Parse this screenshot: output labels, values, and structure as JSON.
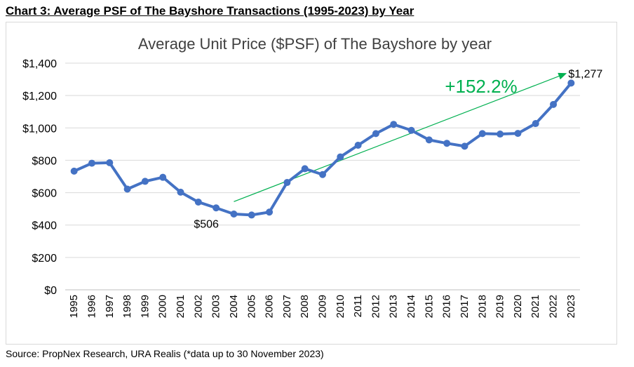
{
  "heading": "Chart 3: Average PSF of The Bayshore Transactions (1995-2023) by Year",
  "source": "Source: PropNex Research, URA Realis (*data up to 30 November 2023)",
  "colors": {
    "series": "#4472C4",
    "trend": "#00B050",
    "grid": "#D9D9D9",
    "axis": "#BFBFBF"
  },
  "chart_data": {
    "type": "line",
    "title": "Average Unit Price ($PSF) of The Bayshore by year",
    "xlabel": "",
    "ylabel": "",
    "ylim": [
      0,
      1400
    ],
    "yticks": [
      0,
      200,
      400,
      600,
      800,
      1000,
      1200,
      1400
    ],
    "ytick_labels": [
      "$0",
      "$200",
      "$400",
      "$600",
      "$800",
      "$1,000",
      "$1,200",
      "$1,400"
    ],
    "grid": true,
    "legend": "none",
    "categories": [
      "1995",
      "1996",
      "1997",
      "1998",
      "1999",
      "2000",
      "2001",
      "2002",
      "2003",
      "2004",
      "2005",
      "2006",
      "2007",
      "2008",
      "2009",
      "2010",
      "2011",
      "2012",
      "2013",
      "2014",
      "2015",
      "2016",
      "2017",
      "2018",
      "2019",
      "2020",
      "2021",
      "2022",
      "2023"
    ],
    "values": [
      733,
      782,
      785,
      622,
      670,
      695,
      603,
      542,
      506,
      468,
      462,
      480,
      663,
      748,
      712,
      821,
      893,
      965,
      1022,
      985,
      926,
      905,
      887,
      965,
      962,
      966,
      1027,
      1145,
      1277
    ],
    "data_labels": [
      {
        "category": "2003",
        "text": "$506"
      },
      {
        "category": "2023",
        "text": "$1,277"
      }
    ],
    "annotations": [
      {
        "text": "+152.2%",
        "type": "trend-arrow",
        "from": {
          "x": "2004",
          "y": 545
        },
        "to": {
          "x": "2023",
          "y": 1335
        }
      }
    ]
  }
}
